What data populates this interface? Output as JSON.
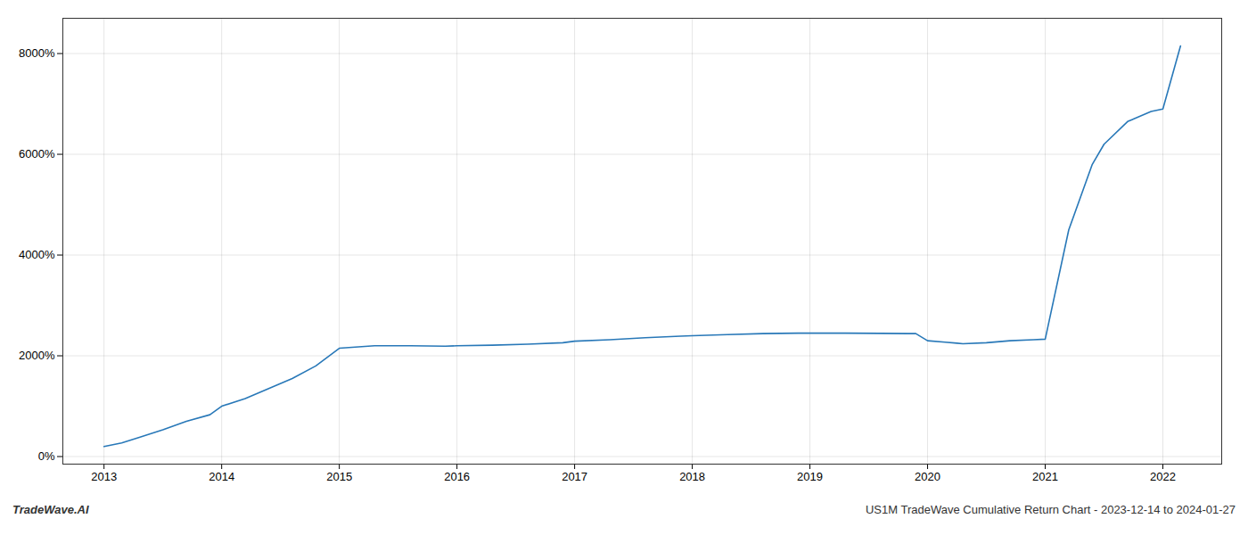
{
  "chart_data": {
    "type": "line",
    "title": "US1M TradeWave Cumulative Return Chart - 2023-12-14 to 2024-01-27",
    "annotations": [
      "TradeWave.AI"
    ],
    "color": "#2878b8",
    "x": [
      2013.0,
      2013.15,
      2013.3,
      2013.5,
      2013.7,
      2013.9,
      2014.0,
      2014.2,
      2014.4,
      2014.6,
      2014.8,
      2015.0,
      2015.3,
      2015.6,
      2015.9,
      2016.0,
      2016.3,
      2016.6,
      2016.9,
      2017.0,
      2017.3,
      2017.6,
      2017.9,
      2018.0,
      2018.3,
      2018.6,
      2018.9,
      2019.0,
      2019.3,
      2019.6,
      2019.9,
      2020.0,
      2020.15,
      2020.25,
      2020.3,
      2020.5,
      2020.7,
      2020.9,
      2021.0,
      2021.2,
      2021.4,
      2021.5,
      2021.7,
      2021.9,
      2022.0,
      2022.15
    ],
    "values": [
      200,
      270,
      380,
      530,
      700,
      830,
      1000,
      1150,
      1350,
      1550,
      1800,
      2150,
      2200,
      2200,
      2190,
      2200,
      2210,
      2230,
      2260,
      2290,
      2320,
      2360,
      2390,
      2400,
      2420,
      2440,
      2450,
      2450,
      2450,
      2445,
      2440,
      2300,
      2270,
      2250,
      2240,
      2260,
      2300,
      2320,
      2330,
      4500,
      5800,
      6200,
      6650,
      6850,
      6900,
      8150
    ],
    "xlim": [
      2012.65,
      2022.5
    ],
    "xticks": [
      2013,
      2014,
      2015,
      2016,
      2017,
      2018,
      2019,
      2020,
      2021,
      2022
    ],
    "ylim": [
      -150,
      8700
    ],
    "yticks": [
      {
        "value": 0,
        "label": "0%"
      },
      {
        "value": 2000,
        "label": "2000%"
      },
      {
        "value": 4000,
        "label": "4000%"
      },
      {
        "value": 6000,
        "label": "6000%"
      },
      {
        "value": 8000,
        "label": "8000%"
      }
    ],
    "grid": true
  }
}
